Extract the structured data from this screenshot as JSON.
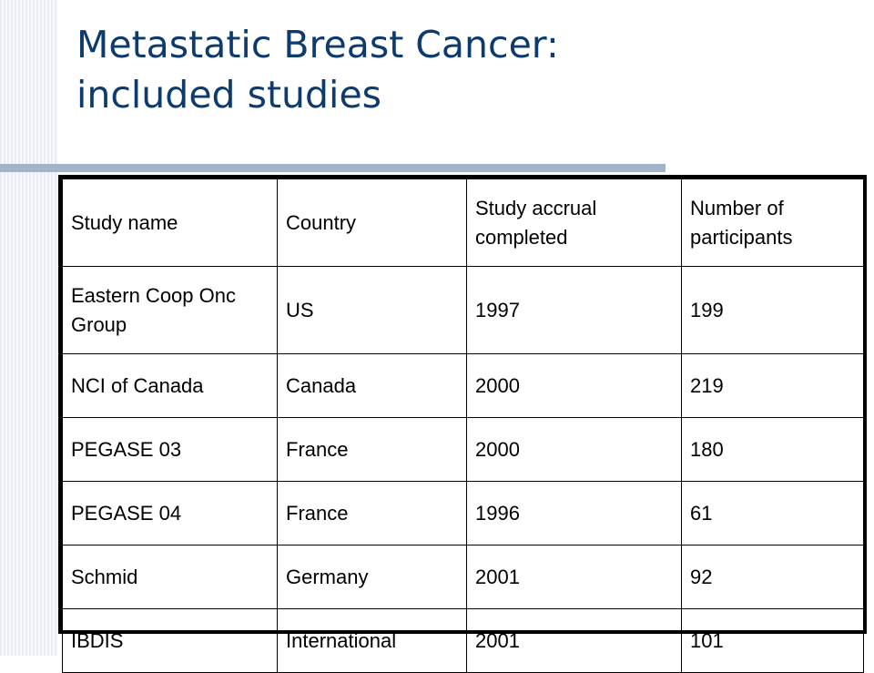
{
  "slide": {
    "title_line1": "Metastatic Breast Cancer:",
    "title_line2": "included studies"
  },
  "table": {
    "headers": [
      "Study name",
      "Country",
      "Study accrual completed",
      "Number of participants"
    ],
    "rows": [
      [
        "Eastern Coop Onc Group",
        "US",
        "1997",
        "199"
      ],
      [
        "NCI of Canada",
        "Canada",
        "2000",
        "219"
      ],
      [
        "PEGASE 03",
        "France",
        "2000",
        "180"
      ],
      [
        "PEGASE 04",
        "France",
        "1996",
        "61"
      ],
      [
        "Schmid",
        "Germany",
        "2001",
        "92"
      ],
      [
        "IBDIS",
        "International",
        "2001",
        "101"
      ]
    ]
  },
  "colors": {
    "title": "#0d3b6e",
    "rule": "#a3b4c9",
    "stripe_light": "#e9edf3"
  }
}
